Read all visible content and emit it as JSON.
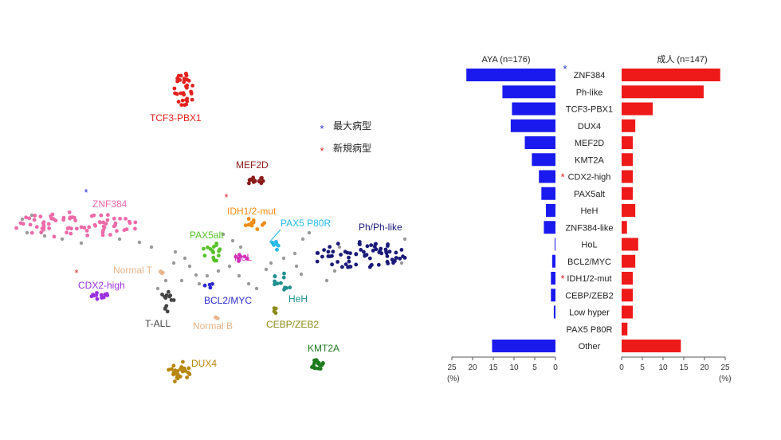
{
  "chart_data": [
    {
      "type": "scatter",
      "legend": [
        {
          "symbol": "*",
          "color": "#2233dd",
          "label": "最大病型"
        },
        {
          "symbol": "*",
          "color": "#dd2222",
          "label": "新規病型"
        }
      ],
      "clusters": [
        {
          "name": "TCF3-PBX1",
          "color": "#e4231f"
        },
        {
          "name": "MEF2D",
          "color": "#8b1a1a"
        },
        {
          "name": "ZNF384",
          "color": "#ee6aa8"
        },
        {
          "name": "IDH1/2-mut",
          "color": "#f28c14"
        },
        {
          "name": "PAX5 P80R",
          "color": "#25b8e8"
        },
        {
          "name": "Ph/Ph-like",
          "color": "#1a1a7a"
        },
        {
          "name": "PAX5alt",
          "color": "#57c22b"
        },
        {
          "name": "HoL",
          "color": "#d430b8"
        },
        {
          "name": "Normal T",
          "color": "#e8b48a"
        },
        {
          "name": "CDX2-high",
          "color": "#9b30e0"
        },
        {
          "name": "HeH",
          "color": "#1f8f8f"
        },
        {
          "name": "BCL2/MYC",
          "color": "#2a2ad0"
        },
        {
          "name": "T-ALL",
          "color": "#444444"
        },
        {
          "name": "Normal B",
          "color": "#e8b48a"
        },
        {
          "name": "CEBP/ZEB2",
          "color": "#8a8a1a"
        },
        {
          "name": "KMT2A",
          "color": "#1c7a1c"
        },
        {
          "name": "DUX4",
          "color": "#b8860b"
        }
      ]
    },
    {
      "type": "bar",
      "orientation": "horizontal",
      "categories": [
        "ZNF384",
        "Ph-like",
        "TCF3-PBX1",
        "DUX4",
        "MEF2D",
        "KMT2A",
        "CDX2-high",
        "PAX5alt",
        "HeH",
        "ZNF384-like",
        "HoL",
        "BCL2/MYC",
        "IDH1/2-mut",
        "CEBP/ZEB2",
        "Low hyper",
        "PAX5 P80R",
        "Other"
      ],
      "series": [
        {
          "name": "AYA (n=176)",
          "color": "#1a1aee",
          "values": [
            21.5,
            12.8,
            10.5,
            10.8,
            7.4,
            5.7,
            4.0,
            3.4,
            2.3,
            2.8,
            0.2,
            0.8,
            1.1,
            1.1,
            0.4,
            0.0,
            15.3
          ]
        },
        {
          "name": "成人 (n=147)",
          "color": "#ee1a1a",
          "values": [
            23.8,
            19.8,
            7.5,
            3.3,
            2.7,
            2.7,
            2.7,
            2.7,
            3.3,
            1.3,
            4.0,
            3.3,
            2.7,
            2.7,
            2.7,
            1.4,
            14.3
          ]
        }
      ],
      "markers": [
        {
          "category": "ZNF384",
          "symbol": "*",
          "color": "#2233dd"
        },
        {
          "category": "CDX2-high",
          "symbol": "*",
          "color": "#dd2222"
        },
        {
          "category": "IDH1/2-mut",
          "symbol": "*",
          "color": "#dd2222"
        }
      ],
      "xlim": [
        0,
        25
      ],
      "ticks": [
        "0",
        "5",
        "10",
        "15",
        "20",
        "25"
      ],
      "unit": "(%)"
    }
  ]
}
